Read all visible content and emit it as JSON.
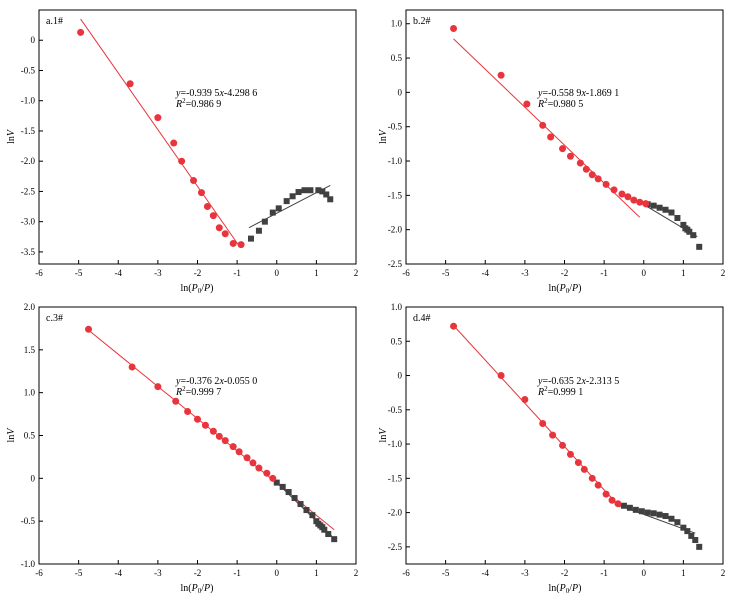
{
  "colors": {
    "red": "#e8343c",
    "gray": "#404040",
    "fit_red": "#e8343c",
    "fit_gray": "#404040"
  },
  "chart_data": [
    {
      "type": "scatter",
      "panel_label": "a.1#",
      "xlabel": "ln(P0/P)",
      "ylabel": "lnV",
      "xlim": [
        -6,
        2
      ],
      "ylim": [
        -3.7,
        0.5
      ],
      "xticks": [
        -6,
        -5,
        -4,
        -3,
        -2,
        -1,
        0,
        1,
        2
      ],
      "yticks": [
        -3.5,
        -3.0,
        -2.5,
        -2.0,
        -1.5,
        -1.0,
        -0.5,
        0
      ],
      "ytick_labels": [
        "-3.5",
        "-3.0",
        "-2.5",
        "-2.0",
        "-1.5",
        "-1.0",
        "-0.5",
        "0"
      ],
      "equation": "y=-0.939 5x-4.298 6",
      "r2_value": "=0.986 9",
      "red_points": [
        [
          -4.95,
          0.13
        ],
        [
          -3.7,
          -0.72
        ],
        [
          -3.0,
          -1.28
        ],
        [
          -2.6,
          -1.7
        ],
        [
          -2.4,
          -2.0
        ],
        [
          -2.1,
          -2.32
        ],
        [
          -1.9,
          -2.52
        ],
        [
          -1.75,
          -2.75
        ],
        [
          -1.6,
          -2.9
        ],
        [
          -1.45,
          -3.1
        ],
        [
          -1.3,
          -3.2
        ],
        [
          -1.1,
          -3.36
        ],
        [
          -0.9,
          -3.38
        ]
      ],
      "gray_points": [
        [
          -0.65,
          -3.28
        ],
        [
          -0.45,
          -3.15
        ],
        [
          -0.3,
          -3.0
        ],
        [
          -0.1,
          -2.85
        ],
        [
          0.05,
          -2.78
        ],
        [
          0.25,
          -2.66
        ],
        [
          0.4,
          -2.58
        ],
        [
          0.55,
          -2.51
        ],
        [
          0.7,
          -2.48
        ],
        [
          0.85,
          -2.48
        ],
        [
          1.05,
          -2.48
        ],
        [
          1.15,
          -2.5
        ],
        [
          1.25,
          -2.55
        ],
        [
          1.35,
          -2.63
        ]
      ],
      "red_fit": [
        [
          -4.95,
          0.35
        ],
        [
          -0.95,
          -3.4
        ]
      ],
      "gray_fit": [
        [
          -0.7,
          -3.1
        ],
        [
          1.35,
          -2.4
        ]
      ]
    },
    {
      "type": "scatter",
      "panel_label": "b.2#",
      "xlabel": "ln(P0/P)",
      "ylabel": "lnV",
      "xlim": [
        -6,
        2
      ],
      "ylim": [
        -2.5,
        1.2
      ],
      "xticks": [
        -6,
        -5,
        -4,
        -3,
        -2,
        -1,
        0,
        1,
        2
      ],
      "yticks": [
        -2.5,
        -2.0,
        -1.5,
        -1.0,
        -0.5,
        0,
        0.5,
        1.0
      ],
      "ytick_labels": [
        "-2.5",
        "-2.0",
        "-1.5",
        "-1.0",
        "-0.5",
        "0",
        "0.5",
        "1.0"
      ],
      "equation": "y=-0.558 9x-1.869 1",
      "r2_value": "=0.980 5",
      "red_points": [
        [
          -4.8,
          0.93
        ],
        [
          -3.6,
          0.25
        ],
        [
          -2.95,
          -0.17
        ],
        [
          -2.55,
          -0.48
        ],
        [
          -2.35,
          -0.65
        ],
        [
          -2.05,
          -0.82
        ],
        [
          -1.85,
          -0.93
        ],
        [
          -1.6,
          -1.03
        ],
        [
          -1.45,
          -1.12
        ],
        [
          -1.3,
          -1.2
        ],
        [
          -1.15,
          -1.26
        ],
        [
          -0.95,
          -1.34
        ],
        [
          -0.75,
          -1.42
        ],
        [
          -0.55,
          -1.48
        ],
        [
          -0.4,
          -1.52
        ],
        [
          -0.25,
          -1.57
        ],
        [
          -0.1,
          -1.6
        ],
        [
          0.05,
          -1.62
        ]
      ],
      "gray_points": [
        [
          0.1,
          -1.63
        ],
        [
          0.25,
          -1.65
        ],
        [
          0.4,
          -1.68
        ],
        [
          0.55,
          -1.71
        ],
        [
          0.7,
          -1.75
        ],
        [
          0.85,
          -1.83
        ],
        [
          1.0,
          -1.93
        ],
        [
          1.05,
          -1.98
        ],
        [
          1.1,
          -2.0
        ],
        [
          1.15,
          -2.03
        ],
        [
          1.25,
          -2.08
        ],
        [
          1.4,
          -2.25
        ]
      ],
      "red_fit": [
        [
          -4.8,
          0.78
        ],
        [
          -0.1,
          -1.82
        ]
      ],
      "gray_fit": [
        [
          -0.1,
          -1.6
        ],
        [
          1.35,
          -2.1
        ]
      ]
    },
    {
      "type": "scatter",
      "panel_label": "c.3#",
      "xlabel": "ln(P0/P)",
      "ylabel": "lnV",
      "xlim": [
        -6,
        2
      ],
      "ylim": [
        -1.0,
        2.0
      ],
      "xticks": [
        -6,
        -5,
        -4,
        -3,
        -2,
        -1,
        0,
        1,
        2
      ],
      "yticks": [
        -1.0,
        -0.5,
        0,
        0.5,
        1.0,
        1.5,
        2.0
      ],
      "ytick_labels": [
        "-1.0",
        "-0.5",
        "0",
        "0.5",
        "1.0",
        "1.5",
        "2.0"
      ],
      "equation": "y=-0.376 2x-0.055 0",
      "r2_value": "=0.999 7",
      "red_points": [
        [
          -4.75,
          1.74
        ],
        [
          -3.65,
          1.3
        ],
        [
          -3.0,
          1.07
        ],
        [
          -2.55,
          0.9
        ],
        [
          -2.25,
          0.78
        ],
        [
          -2.0,
          0.69
        ],
        [
          -1.8,
          0.62
        ],
        [
          -1.6,
          0.55
        ],
        [
          -1.45,
          0.49
        ],
        [
          -1.3,
          0.44
        ],
        [
          -1.1,
          0.37
        ],
        [
          -0.95,
          0.31
        ],
        [
          -0.75,
          0.24
        ],
        [
          -0.6,
          0.18
        ],
        [
          -0.45,
          0.12
        ],
        [
          -0.25,
          0.06
        ],
        [
          -0.1,
          0.0
        ]
      ],
      "gray_points": [
        [
          0.0,
          -0.05
        ],
        [
          0.15,
          -0.1
        ],
        [
          0.3,
          -0.16
        ],
        [
          0.45,
          -0.23
        ],
        [
          0.6,
          -0.3
        ],
        [
          0.75,
          -0.37
        ],
        [
          0.9,
          -0.43
        ],
        [
          1.0,
          -0.5
        ],
        [
          1.05,
          -0.53
        ],
        [
          1.1,
          -0.55
        ],
        [
          1.15,
          -0.57
        ],
        [
          1.2,
          -0.6
        ],
        [
          1.3,
          -0.65
        ],
        [
          1.45,
          -0.71
        ]
      ],
      "red_fit": [
        [
          -4.75,
          1.73
        ],
        [
          1.45,
          -0.6
        ]
      ],
      "gray_fit": [
        [
          0.0,
          -0.05
        ],
        [
          1.4,
          -0.68
        ]
      ]
    },
    {
      "type": "scatter",
      "panel_label": "d.4#",
      "xlabel": "ln(P0/P)",
      "ylabel": "lnV",
      "xlim": [
        -6,
        2
      ],
      "ylim": [
        -2.75,
        1.0
      ],
      "xticks": [
        -6,
        -5,
        -4,
        -3,
        -2,
        -1,
        0,
        1,
        2
      ],
      "yticks": [
        -2.5,
        -2.0,
        -1.5,
        -1.0,
        -0.5,
        0,
        0.5,
        1.0
      ],
      "ytick_labels": [
        "-2.5",
        "-2.0",
        "-1.5",
        "-1.0",
        "-0.5",
        "0",
        "0.5",
        "1.0"
      ],
      "equation": "y=-0.635 2x-2.313 5",
      "r2_value": "=0.999 1",
      "red_points": [
        [
          -4.8,
          0.72
        ],
        [
          -3.6,
          0.0
        ],
        [
          -3.0,
          -0.35
        ],
        [
          -2.55,
          -0.7
        ],
        [
          -2.3,
          -0.87
        ],
        [
          -2.05,
          -1.02
        ],
        [
          -1.85,
          -1.15
        ],
        [
          -1.65,
          -1.27
        ],
        [
          -1.5,
          -1.37
        ],
        [
          -1.3,
          -1.5
        ],
        [
          -1.15,
          -1.6
        ],
        [
          -0.95,
          -1.73
        ],
        [
          -0.8,
          -1.82
        ],
        [
          -0.65,
          -1.87
        ]
      ],
      "gray_points": [
        [
          -0.5,
          -1.9
        ],
        [
          -0.35,
          -1.93
        ],
        [
          -0.2,
          -1.96
        ],
        [
          -0.05,
          -1.98
        ],
        [
          0.1,
          -2.0
        ],
        [
          0.25,
          -2.01
        ],
        [
          0.4,
          -2.03
        ],
        [
          0.55,
          -2.05
        ],
        [
          0.7,
          -2.09
        ],
        [
          0.85,
          -2.14
        ],
        [
          1.0,
          -2.22
        ],
        [
          1.1,
          -2.27
        ],
        [
          1.2,
          -2.34
        ],
        [
          1.3,
          -2.4
        ],
        [
          1.4,
          -2.5
        ]
      ],
      "red_fit": [
        [
          -4.8,
          0.73
        ],
        [
          -0.6,
          -1.92
        ]
      ],
      "gray_fit": [
        [
          -0.6,
          -1.9
        ],
        [
          1.3,
          -2.3
        ]
      ]
    }
  ]
}
